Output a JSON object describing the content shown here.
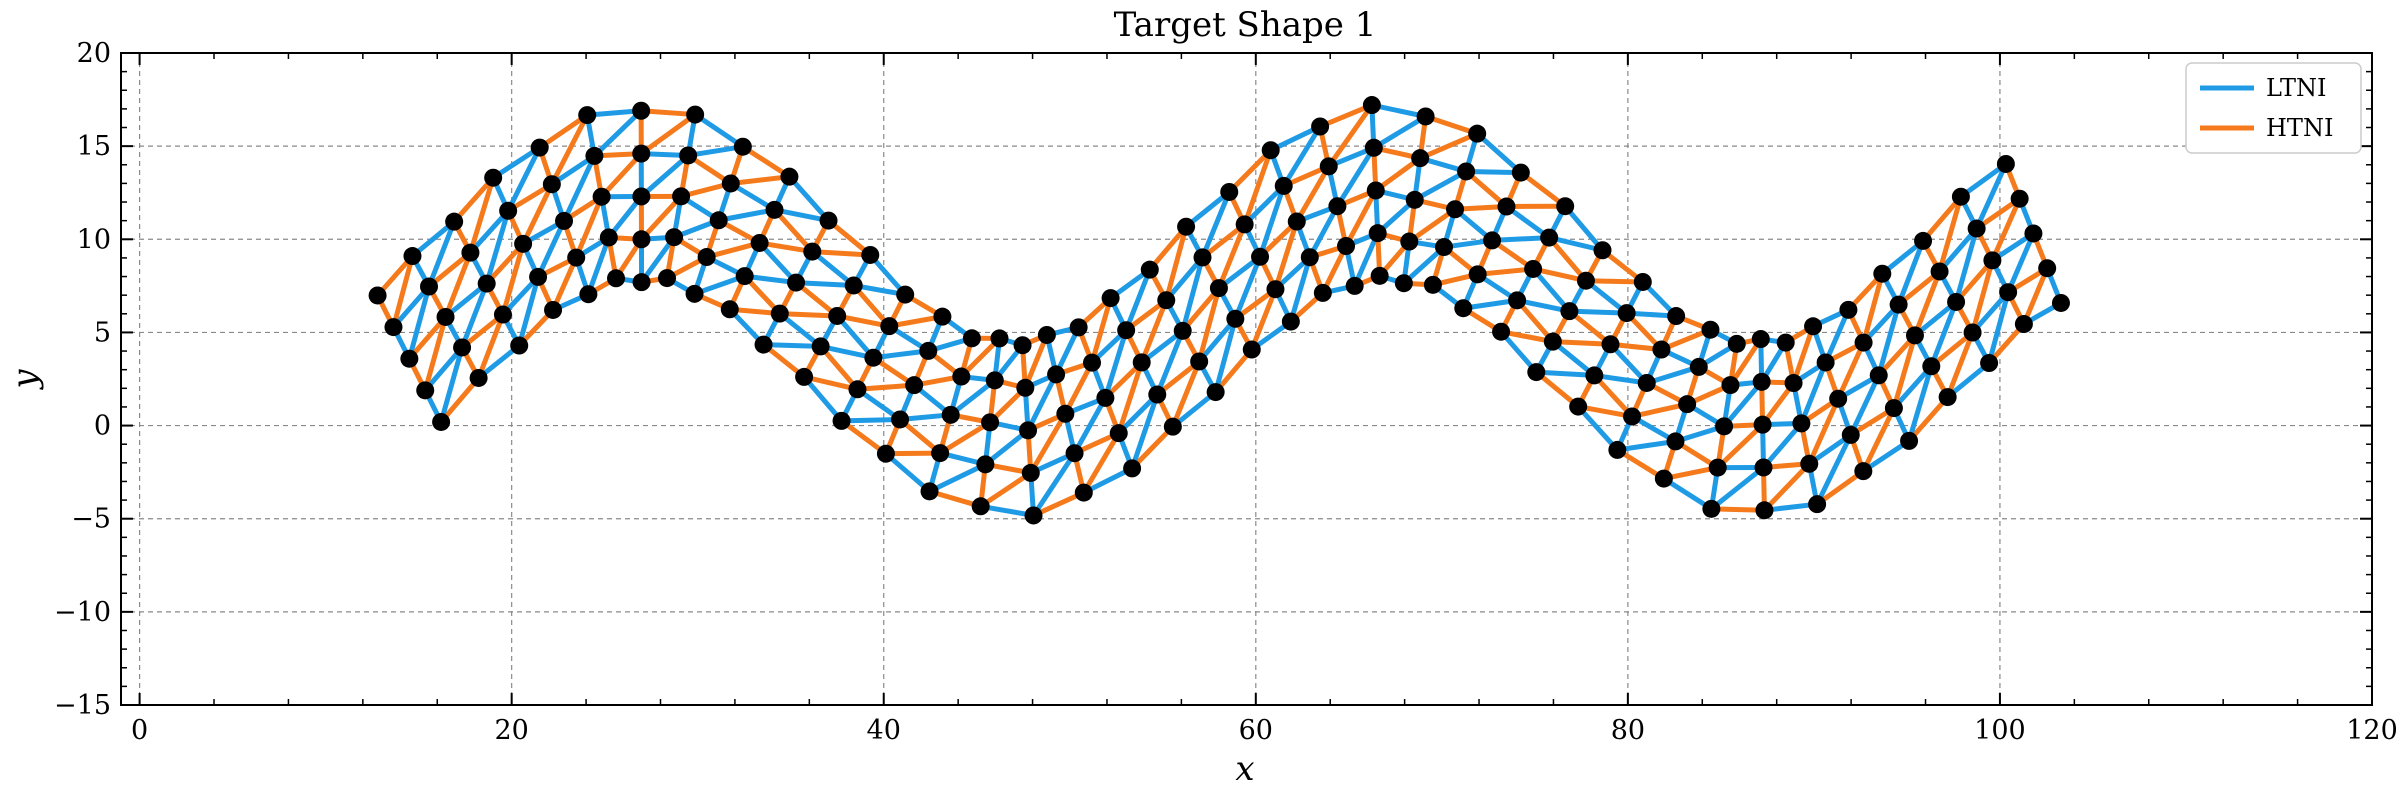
{
  "chart_data": {
    "type": "scatter",
    "title": "Target Shape 1",
    "xlabel": "x",
    "ylabel": "y",
    "xlim": [
      -1,
      120
    ],
    "ylim": [
      -15,
      20
    ],
    "x_ticks": [
      0,
      20,
      40,
      60,
      80,
      100,
      120
    ],
    "y_ticks": [
      -15,
      -10,
      -5,
      0,
      5,
      10,
      15,
      20
    ],
    "grid": true,
    "legend_position": "top-right",
    "series": [
      {
        "name": "LTNI",
        "color": "#1f9be6"
      },
      {
        "name": "HTNI",
        "color": "#f57a1c"
      }
    ],
    "node_color": "#000000",
    "lattice": {
      "columns": 43,
      "x_start": 14.5,
      "x_end": 101.8,
      "rows_per_column": 5,
      "row_spacing": 2.3,
      "center_offset": 6.0,
      "amplitude": 6.3,
      "wavelength": 40.0,
      "phase_x": 17.0
    }
  }
}
